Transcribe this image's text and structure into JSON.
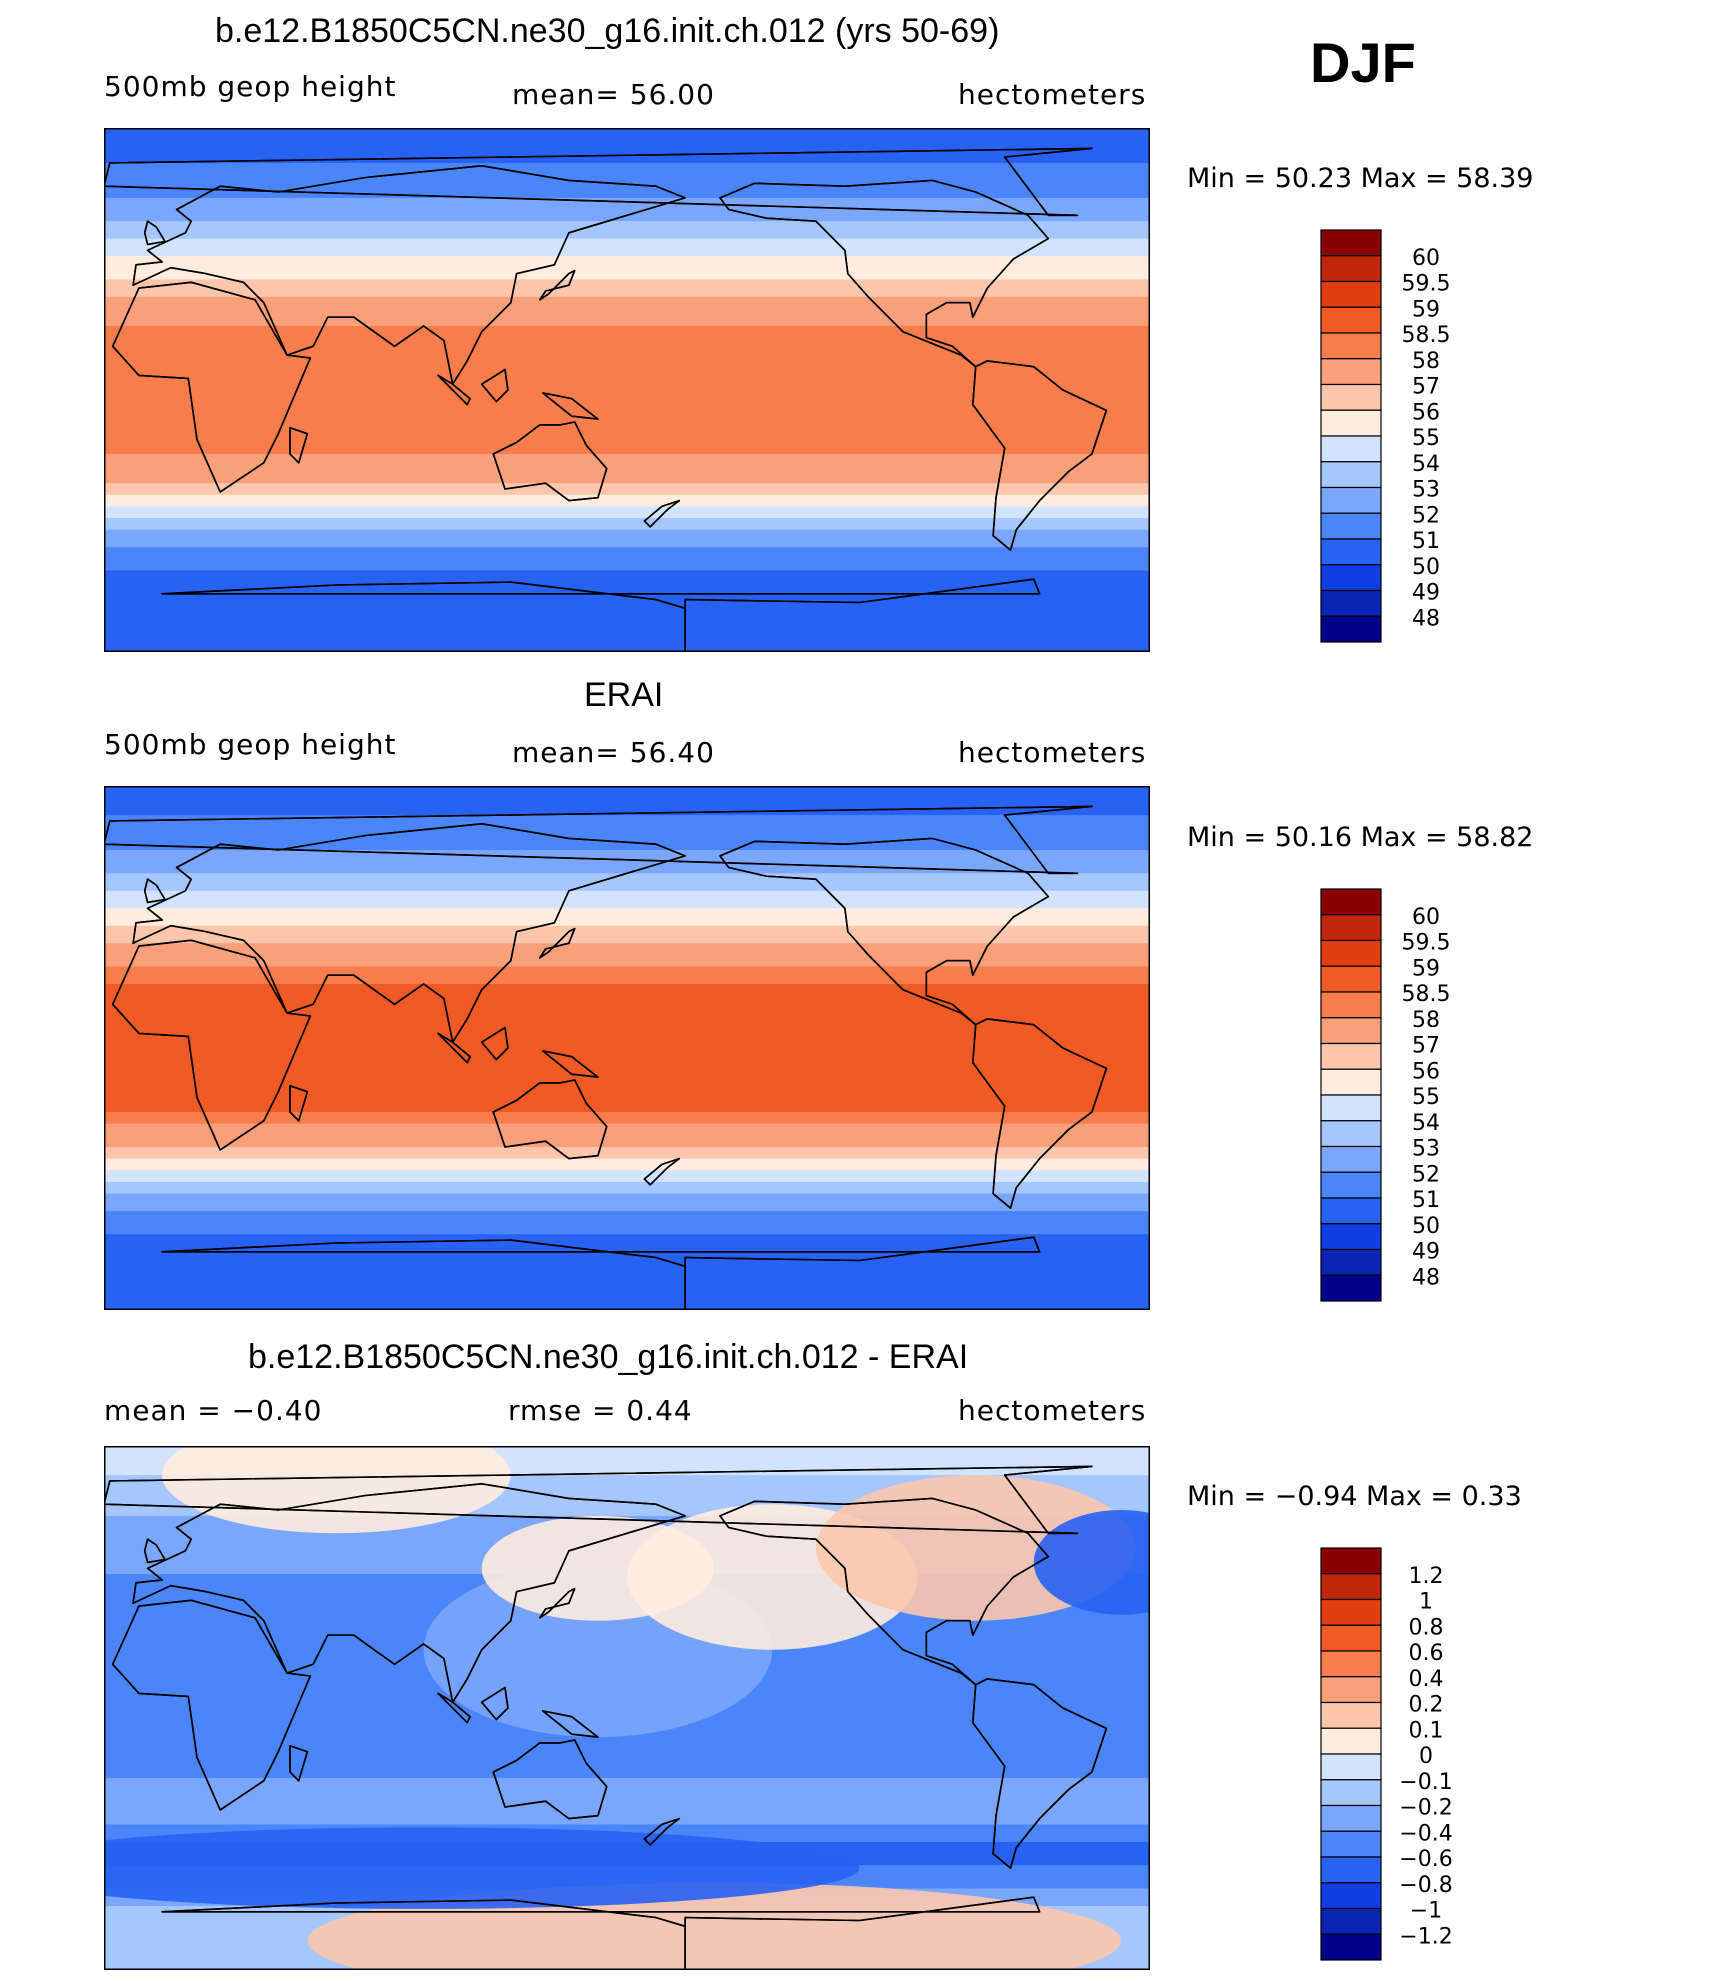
{
  "season": "DJF",
  "palettes": {
    "main": [
      "#00008a",
      "#0a24b4",
      "#0e3ee2",
      "#2762f2",
      "#4a86fa",
      "#7aa6fc",
      "#a6c6fe",
      "#d2e4fd",
      "#ffecde",
      "#fcc6ad",
      "#f9a07b",
      "#f77e4c",
      "#f05a24",
      "#e13e12",
      "#c0260a",
      "#8a0000"
    ],
    "diff": [
      "#00008a",
      "#0a24b4",
      "#0e3ee2",
      "#2762f2",
      "#4a86fa",
      "#7aa6fc",
      "#a6c6fe",
      "#d2e4fd",
      "#ffecde",
      "#fcc6ad",
      "#f9a07b",
      "#f77e4c",
      "#f05a24",
      "#e13e12",
      "#c0260a",
      "#8a0000"
    ]
  },
  "chart_data": [
    {
      "type": "heatmap",
      "title": "b.e12.B1850C5CN.ne30_g16.init.ch.012 (yrs 50-69)",
      "left_label": "500mb  geop  height",
      "center_label": "mean=   56.00",
      "right_label": "hectometers",
      "min_max": "Min  =    50.23  Max  =    58.39",
      "min": 50.23,
      "max": 58.39,
      "mean": 56.0,
      "colorbar_levels": [
        "60",
        "59.5",
        "59",
        "58.5",
        "58",
        "57",
        "56",
        "55",
        "54",
        "53",
        "52",
        "51",
        "50",
        "49",
        "48"
      ],
      "lat_profile": [
        {
          "lat": 90,
          "value": 50.4
        },
        {
          "lat": 80,
          "value": 50.9
        },
        {
          "lat": 70,
          "value": 51.5
        },
        {
          "lat": 60,
          "value": 52.6
        },
        {
          "lat": 50,
          "value": 54.2
        },
        {
          "lat": 40,
          "value": 55.8
        },
        {
          "lat": 30,
          "value": 57.3
        },
        {
          "lat": 20,
          "value": 58.1
        },
        {
          "lat": 10,
          "value": 58.3
        },
        {
          "lat": 0,
          "value": 58.3
        },
        {
          "lat": -10,
          "value": 58.3
        },
        {
          "lat": -20,
          "value": 58.1
        },
        {
          "lat": -30,
          "value": 57.2
        },
        {
          "lat": -40,
          "value": 55.2
        },
        {
          "lat": -50,
          "value": 52.6
        },
        {
          "lat": -60,
          "value": 51.1
        },
        {
          "lat": -70,
          "value": 50.4
        },
        {
          "lat": -80,
          "value": 50.3
        },
        {
          "lat": -90,
          "value": 50.5
        }
      ]
    },
    {
      "type": "heatmap",
      "title": "ERAI",
      "left_label": "500mb  geop  height",
      "center_label": "mean=   56.40",
      "right_label": "hectometers",
      "min_max": "Min  =    50.16  Max  =    58.82",
      "min": 50.16,
      "max": 58.82,
      "mean": 56.4,
      "colorbar_levels": [
        "60",
        "59.5",
        "59",
        "58.5",
        "58",
        "57",
        "56",
        "55",
        "54",
        "53",
        "52",
        "51",
        "50",
        "49",
        "48"
      ],
      "lat_profile": [
        {
          "lat": 90,
          "value": 50.5
        },
        {
          "lat": 80,
          "value": 51.0
        },
        {
          "lat": 70,
          "value": 51.7
        },
        {
          "lat": 60,
          "value": 52.9
        },
        {
          "lat": 50,
          "value": 54.5
        },
        {
          "lat": 40,
          "value": 56.2
        },
        {
          "lat": 30,
          "value": 57.8
        },
        {
          "lat": 20,
          "value": 58.6
        },
        {
          "lat": 10,
          "value": 58.7
        },
        {
          "lat": 0,
          "value": 58.7
        },
        {
          "lat": -10,
          "value": 58.7
        },
        {
          "lat": -20,
          "value": 58.6
        },
        {
          "lat": -30,
          "value": 57.6
        },
        {
          "lat": -40,
          "value": 55.6
        },
        {
          "lat": -50,
          "value": 53.0
        },
        {
          "lat": -60,
          "value": 51.3
        },
        {
          "lat": -70,
          "value": 50.5
        },
        {
          "lat": -80,
          "value": 50.3
        },
        {
          "lat": -90,
          "value": 50.6
        }
      ]
    },
    {
      "type": "heatmap",
      "title": "b.e12.B1850C5CN.ne30_g16.init.ch.012 - ERAI",
      "left_label": "mean  =    −0.40",
      "center_label": "rmse  =     0.44",
      "right_label": "hectometers",
      "min_max": "Min  =    −0.94  Max  =     0.33",
      "min": -0.94,
      "max": 0.33,
      "mean": -0.4,
      "rmse": 0.44,
      "colorbar_levels": [
        "1.2",
        "1",
        "0.8",
        "0.6",
        "0.4",
        "0.2",
        "0.1",
        "0",
        "−0.1",
        "−0.2",
        "−0.4",
        "−0.6",
        "−0.8",
        "−1",
        "−1.2"
      ],
      "lat_profile": [
        {
          "lat": 90,
          "value": -0.05
        },
        {
          "lat": 80,
          "value": -0.1
        },
        {
          "lat": 70,
          "value": -0.15
        },
        {
          "lat": 60,
          "value": -0.3
        },
        {
          "lat": 50,
          "value": -0.35
        },
        {
          "lat": 40,
          "value": -0.5
        },
        {
          "lat": 30,
          "value": -0.5
        },
        {
          "lat": 20,
          "value": -0.45
        },
        {
          "lat": 10,
          "value": -0.45
        },
        {
          "lat": 0,
          "value": -0.45
        },
        {
          "lat": -10,
          "value": -0.45
        },
        {
          "lat": -20,
          "value": -0.45
        },
        {
          "lat": -30,
          "value": -0.35
        },
        {
          "lat": -40,
          "value": -0.4
        },
        {
          "lat": -50,
          "value": -0.7
        },
        {
          "lat": -60,
          "value": -0.5
        },
        {
          "lat": -70,
          "value": -0.1
        },
        {
          "lat": -80,
          "value": -0.2
        },
        {
          "lat": -90,
          "value": -0.2
        }
      ]
    }
  ]
}
